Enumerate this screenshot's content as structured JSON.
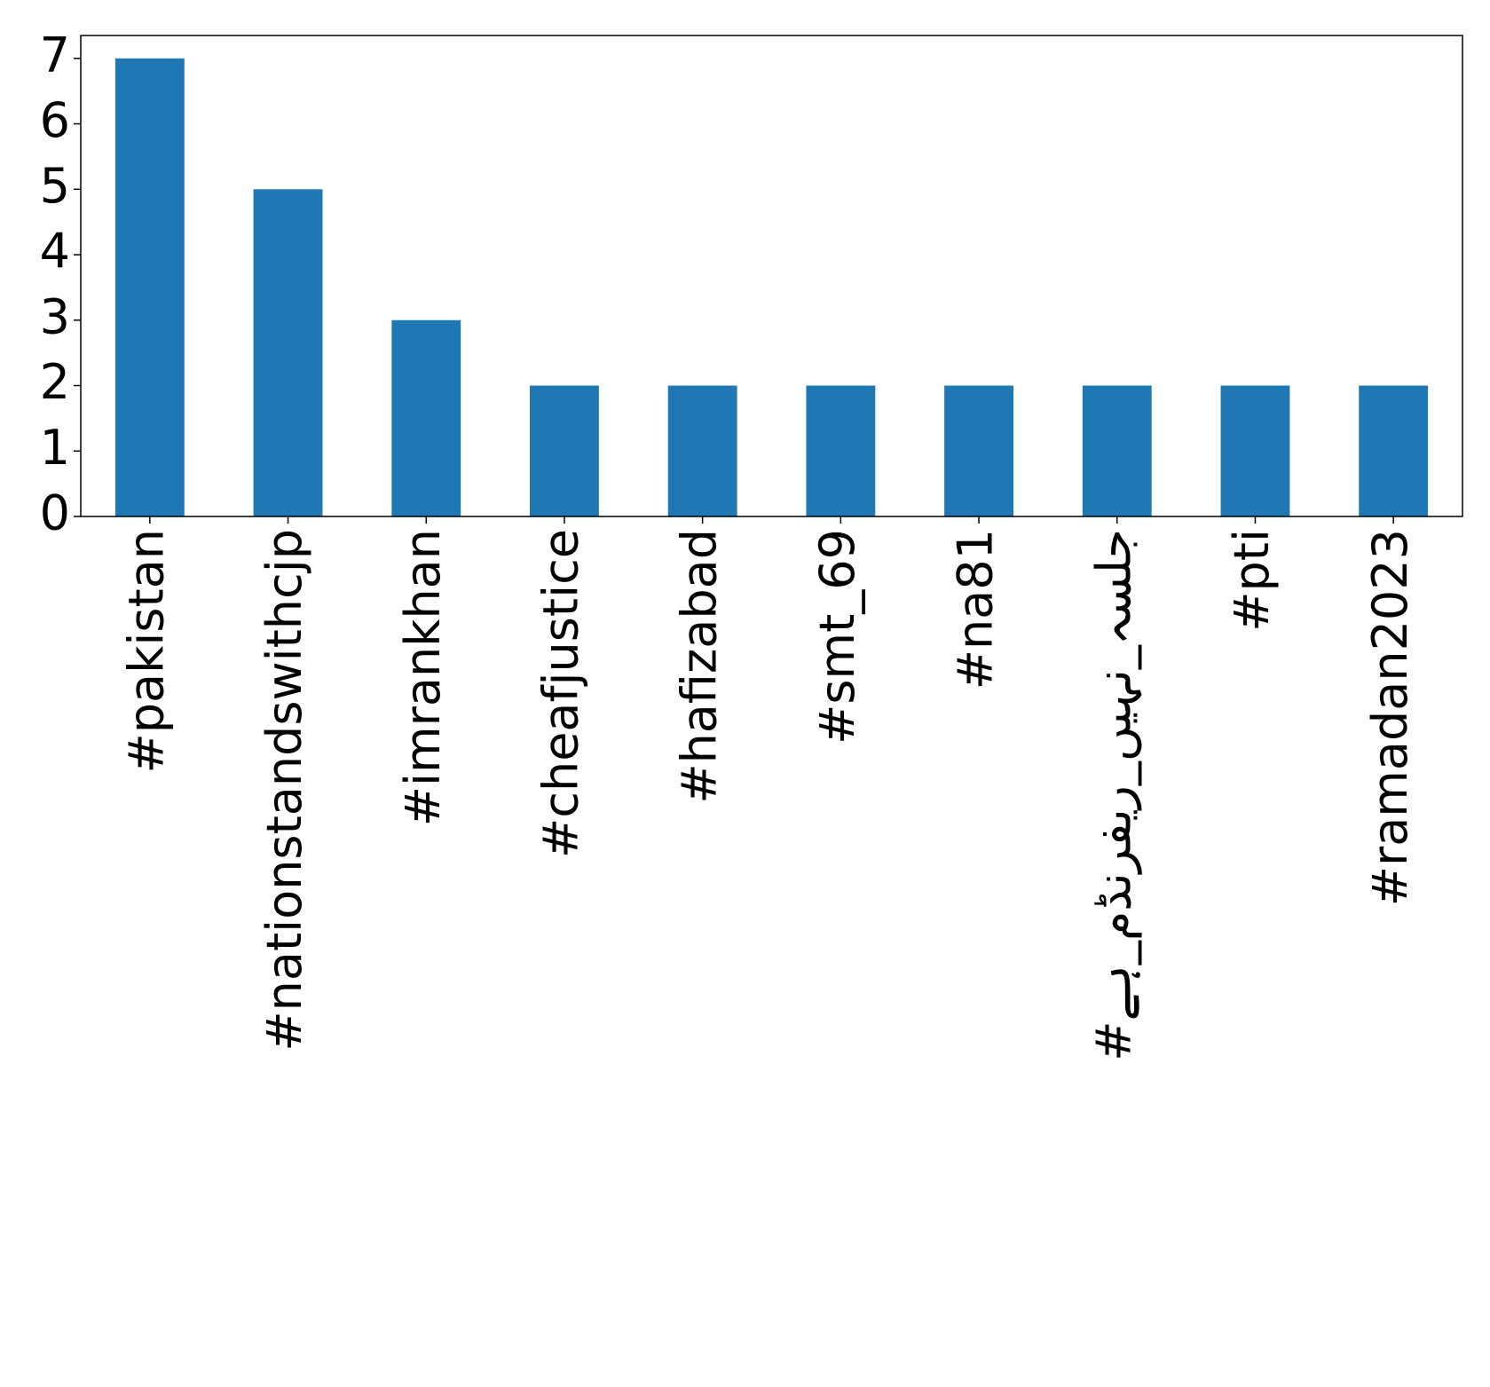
{
  "chart_data": {
    "type": "bar",
    "categories": [
      "#pakistan",
      "#nationstandswithcjp",
      "#imrankhan",
      "#cheafjustice",
      "#hafizabad",
      "#smt_69",
      "#na81",
      "#جلسہ_نہیں_ریفرنڈم_ہے",
      "#pti",
      "#ramadan2023"
    ],
    "values": [
      7,
      5,
      3,
      2,
      2,
      2,
      2,
      2,
      2,
      2
    ],
    "color": "#1f77b4",
    "ylim": [
      0,
      7.35
    ],
    "yticks": [
      0,
      1,
      2,
      3,
      4,
      5,
      6,
      7
    ],
    "grid": false
  }
}
